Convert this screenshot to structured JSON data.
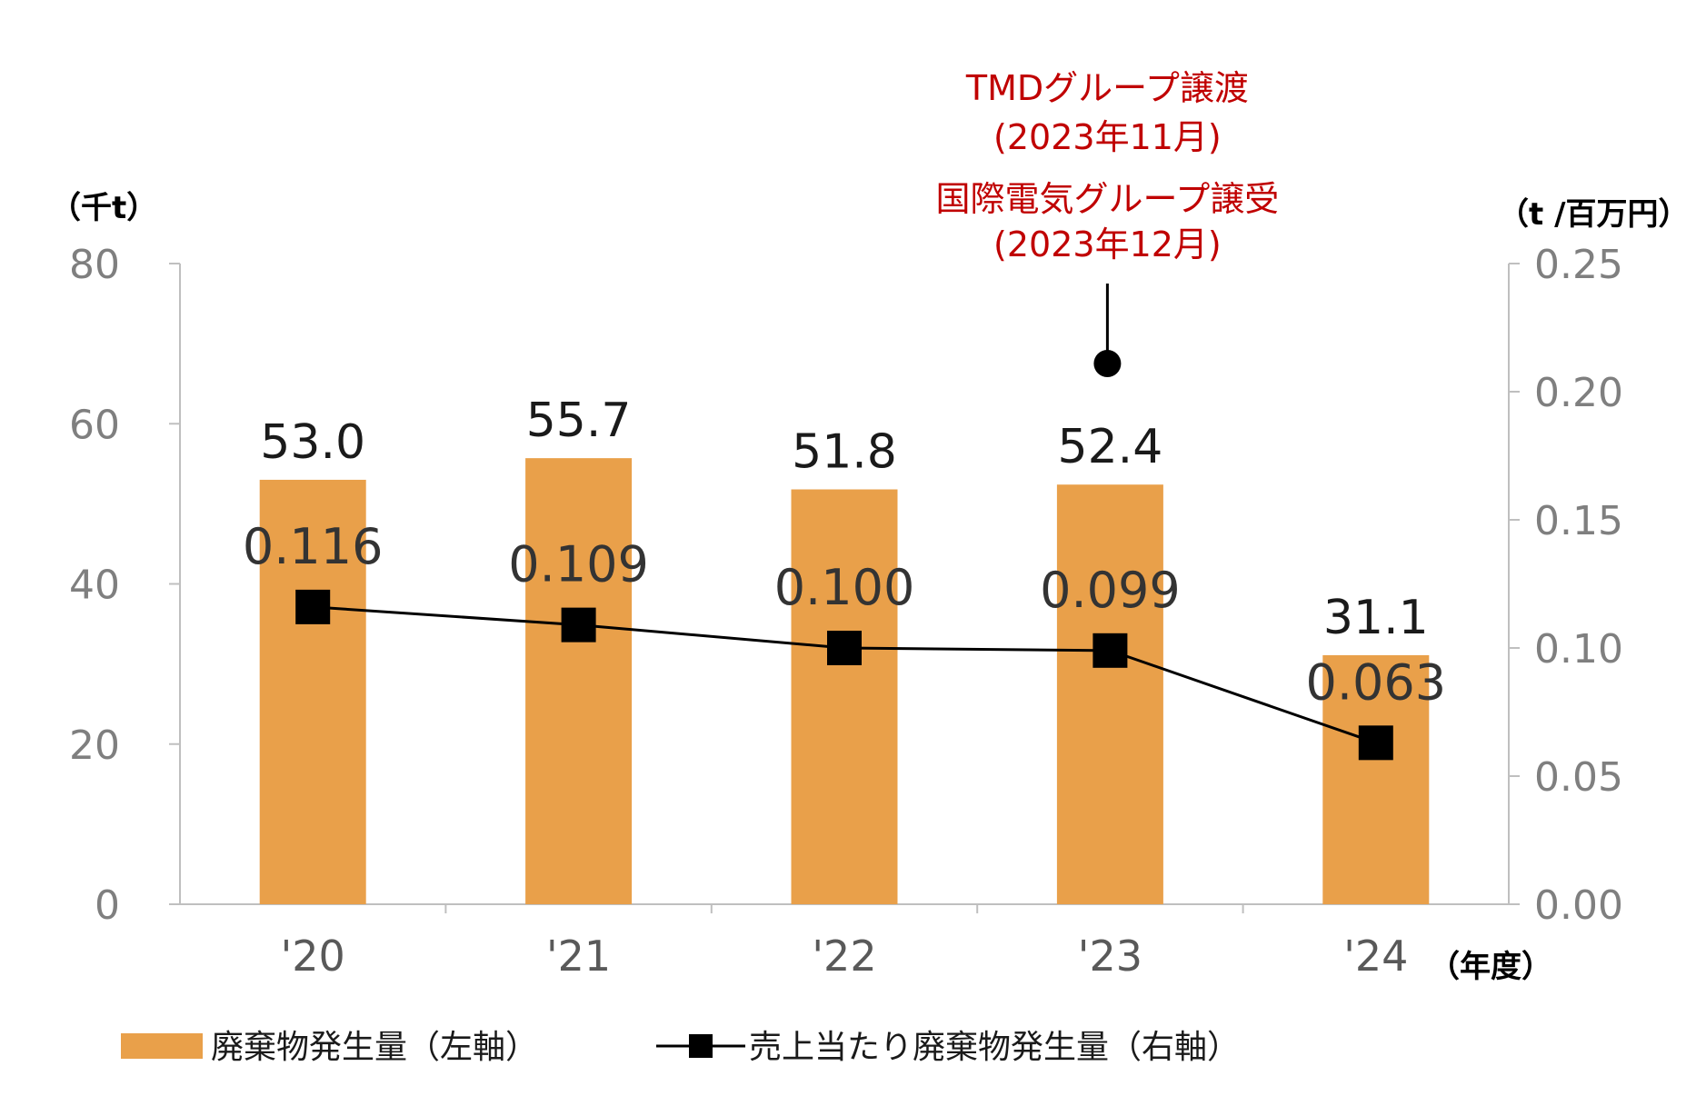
{
  "chart_data": {
    "type": "bar",
    "categories": [
      "'20",
      "'21",
      "'22",
      "'23",
      "'24"
    ],
    "series": [
      {
        "name": "廃棄物発生量（左軸）",
        "type": "bar",
        "axis": "left",
        "values": [
          53.0,
          55.7,
          51.8,
          52.4,
          31.1
        ],
        "labels": [
          "53.0",
          "55.7",
          "51.8",
          "52.4",
          "31.1"
        ]
      },
      {
        "name": "売上当たり廃棄物発生量（右軸）",
        "type": "line",
        "axis": "right",
        "values": [
          0.116,
          0.109,
          0.1,
          0.099,
          0.063
        ],
        "labels": [
          "0.116",
          "0.109",
          "0.100",
          "0.099",
          "0.063"
        ]
      }
    ],
    "y_left": {
      "unit": "（千t）",
      "ylim": [
        0,
        80
      ],
      "ticks": [
        "0",
        "20",
        "40",
        "60",
        "80"
      ]
    },
    "y_right": {
      "unit": "（t /百万円）",
      "ylim": [
        0,
        0.25
      ],
      "ticks": [
        "0.00",
        "0.05",
        "0.10",
        "0.15",
        "0.20",
        "0.25"
      ]
    },
    "x_unit": "（年度）",
    "annotation": {
      "category": "'23",
      "lines": [
        "TMDグループ譲渡",
        "(2023年11月)",
        "国際電気グループ譲受",
        "(2023年12月)"
      ]
    },
    "legend_position": "bottom",
    "grid": false,
    "colors": {
      "bar": "#E9A04A",
      "line": "#000000",
      "annotation": "#C00000",
      "axis": "#BFBFBF"
    }
  }
}
